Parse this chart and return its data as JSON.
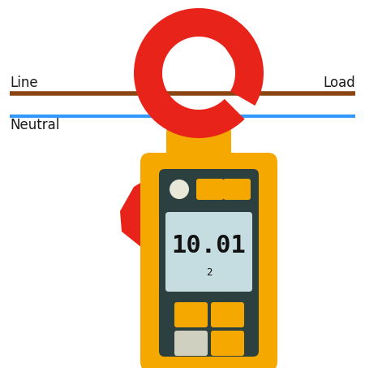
{
  "fig_width": 4.5,
  "fig_height": 4.53,
  "dpi": 100,
  "bg_color": "#ffffff",
  "line_color": "#8B4513",
  "neutral_color": "#3399FF",
  "line_thickness": 4.0,
  "neutral_thickness": 3.0,
  "line_label": "Line",
  "neutral_label": "Neutral",
  "load_label": "Load",
  "clamp_color": "#E8231A",
  "body_color": "#F5A800",
  "body_dark": "#2D4040",
  "display_bg": "#C5DCE0",
  "display_text": "10.01",
  "display_sub": "2",
  "button_orange": "#F5A800",
  "button_light": "#D0D0C0",
  "label_color": "#1a1a1a",
  "label_fontsize": 12
}
